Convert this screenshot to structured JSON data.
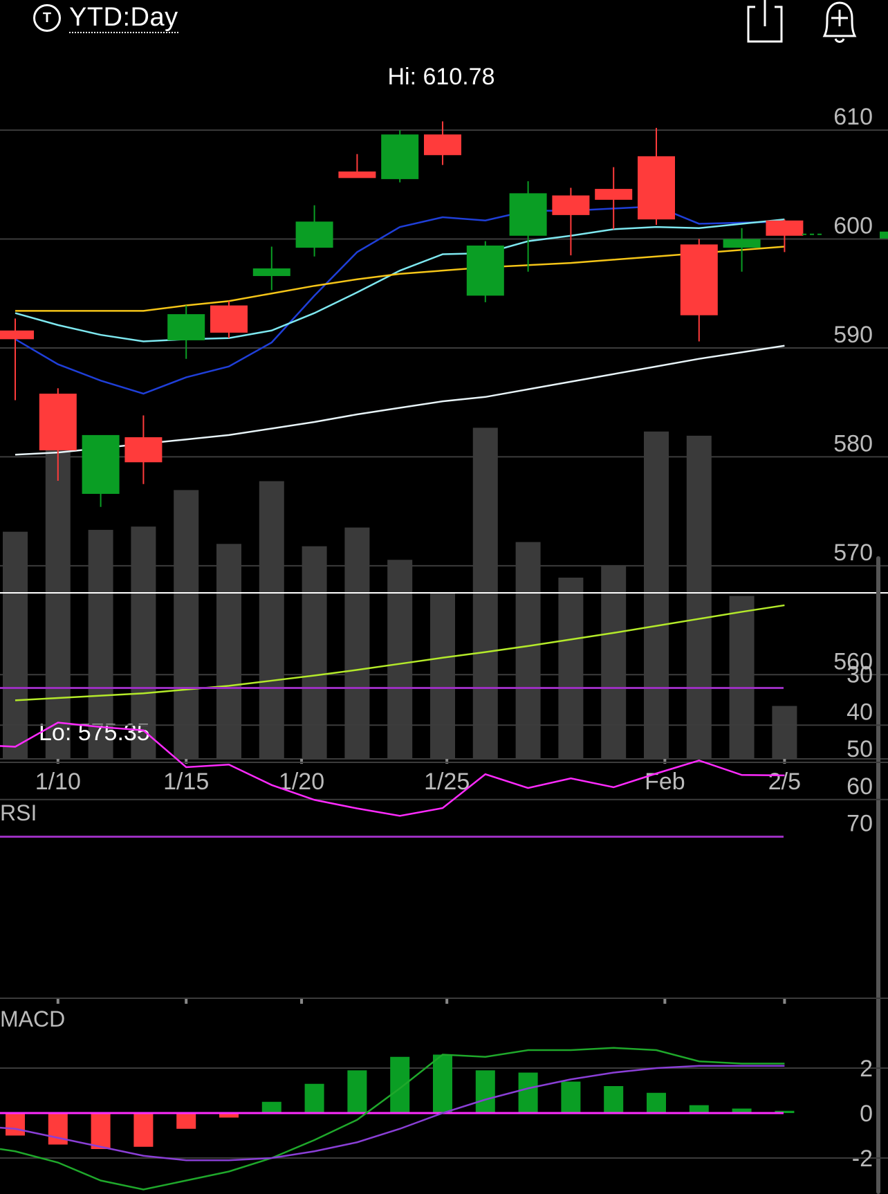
{
  "header": {
    "period_icon": "ticker-icon",
    "period_icon_letter": "T",
    "period_label": "YTD:Day",
    "share_icon": "share-icon",
    "alert_icon": "add-alert-icon"
  },
  "colors": {
    "up": "#0a9e24",
    "down": "#ff3b3b",
    "volume": "#3a3a3a",
    "grid": "#3c3c3c",
    "ma_blue": "#1f3fd8",
    "ma_cyan": "#7ee8f0",
    "ma_yellow": "#f5c518",
    "ma_white": "#e8f4f8",
    "volume_ma": "#b4ea2a",
    "rsi_line": "#ff2bff",
    "rsi_bounds": "#9b2fc0",
    "macd_line": "#1fa82b",
    "signal_line": "#8a3fd6",
    "macd_zero": "#ff2bff"
  },
  "chart_data": [
    {
      "type": "candlestick",
      "title": "",
      "period": "YTD:Day",
      "x": [
        "1/8",
        "1/10",
        "1/13",
        "1/14",
        "1/15",
        "1/16",
        "1/17",
        "1/21",
        "1/22",
        "1/23",
        "1/24",
        "1/27",
        "1/28",
        "1/29",
        "1/30",
        "1/31",
        "2/3",
        "2/4",
        "2/5"
      ],
      "x_tick_labels": [
        "1/10",
        "1/15",
        "1/20",
        "1/25",
        "Feb",
        "2/5"
      ],
      "y_tick_labels": [
        560,
        570,
        580,
        590,
        600,
        610
      ],
      "ylim": [
        552.3,
        612.1
      ],
      "hi_label": "Hi: 610.78",
      "lo_label": "Lo: 575.35",
      "series": [
        {
          "name": "",
          "ohlc": [
            [
              591.6,
              592.7,
              585.2,
              590.8
            ],
            [
              585.8,
              586.3,
              577.8,
              580.6
            ],
            [
              576.6,
              581.7,
              575.4,
              582.0
            ],
            [
              581.8,
              583.8,
              577.5,
              579.5
            ],
            [
              590.7,
              593.9,
              589.0,
              593.1
            ],
            [
              593.9,
              594.3,
              590.9,
              591.4
            ],
            [
              596.6,
              599.3,
              595.3,
              597.3
            ],
            [
              599.2,
              603.1,
              598.4,
              601.6
            ],
            [
              606.2,
              607.8,
              605.8,
              605.6
            ],
            [
              605.5,
              610.0,
              605.2,
              609.6
            ],
            [
              609.6,
              610.8,
              606.8,
              607.7
            ],
            [
              594.8,
              599.8,
              594.2,
              599.4
            ],
            [
              600.3,
              605.3,
              597.0,
              604.2
            ],
            [
              604.0,
              604.7,
              598.5,
              602.2
            ],
            [
              604.6,
              606.6,
              600.9,
              603.6
            ],
            [
              607.6,
              610.2,
              601.3,
              601.8
            ],
            [
              599.5,
              600.0,
              590.6,
              593.0
            ],
            [
              599.2,
              601.0,
              597.0,
              600.0
            ],
            [
              601.7,
              601.8,
              598.8,
              600.3
            ]
          ]
        },
        {
          "name": "",
          "role": "ma_blue",
          "values": [
            590.8,
            588.5,
            587.0,
            585.8,
            587.3,
            588.3,
            590.5,
            594.8,
            598.8,
            601.1,
            602.0,
            601.7,
            602.6,
            602.6,
            602.8,
            603.0,
            601.4,
            601.5,
            601.6
          ]
        },
        {
          "name": "",
          "role": "ma_cyan",
          "values": [
            593.2,
            592.1,
            591.2,
            590.6,
            590.8,
            590.9,
            591.6,
            593.2,
            595.1,
            597.1,
            598.6,
            598.7,
            599.8,
            600.3,
            600.9,
            601.1,
            601.0,
            601.4,
            601.8
          ]
        },
        {
          "name": "",
          "role": "ma_yellow",
          "values": [
            593.4,
            593.4,
            593.4,
            593.4,
            593.9,
            594.3,
            595.0,
            595.7,
            596.3,
            596.8,
            597.1,
            597.4,
            597.6,
            597.8,
            598.1,
            598.4,
            598.7,
            599.0,
            599.3
          ]
        },
        {
          "name": "",
          "role": "ma_white",
          "values": [
            580.2,
            580.4,
            580.8,
            581.2,
            581.6,
            582.0,
            582.6,
            583.2,
            583.9,
            584.5,
            585.1,
            585.5,
            586.2,
            586.9,
            587.6,
            588.3,
            589.0,
            589.6,
            590.2
          ]
        }
      ]
    },
    {
      "type": "bar",
      "title": "",
      "role": "volume",
      "x": [
        "1/8",
        "1/10",
        "1/13",
        "1/14",
        "1/15",
        "1/16",
        "1/17",
        "1/21",
        "1/22",
        "1/23",
        "1/24",
        "1/27",
        "1/28",
        "1/29",
        "1/30",
        "1/31",
        "2/3",
        "2/4",
        "2/5"
      ],
      "values": [
        48.5,
        73.9,
        48.9,
        49.6,
        57.4,
        45.9,
        59.3,
        45.4,
        49.4,
        42.5,
        35.6,
        70.7,
        46.3,
        38.7,
        41.2,
        69.9,
        69.0,
        34.8,
        11.3
      ],
      "volume_ma": [
        12.5,
        13.0,
        13.5,
        14.0,
        14.8,
        15.6,
        16.7,
        17.8,
        19.0,
        20.3,
        21.6,
        22.8,
        24.1,
        25.5,
        26.9,
        28.4,
        29.9,
        31.4,
        32.8
      ],
      "ylim": [
        0,
        100
      ]
    },
    {
      "type": "line",
      "title": "RSI",
      "y_tick_labels": [
        30,
        40,
        50,
        60,
        70
      ],
      "bounds": [
        70,
        30
      ],
      "ylim": [
        26,
        72.5
      ],
      "values": [
        45.8,
        39.3,
        40.5,
        41.4,
        51.3,
        50.6,
        56.1,
        60.1,
        62.4,
        64.4,
        62.3,
        53.2,
        56.9,
        54.3,
        56.7,
        53.0,
        49.5,
        53.4,
        53.5
      ]
    },
    {
      "type": "bar",
      "title": "MACD",
      "y_tick_labels": [
        -2,
        0,
        2
      ],
      "ylim": [
        -3.5,
        3.3
      ],
      "histogram": [
        -1.0,
        -1.4,
        -1.6,
        -1.5,
        -0.7,
        -0.2,
        0.5,
        1.3,
        1.9,
        2.5,
        2.6,
        1.9,
        1.8,
        1.4,
        1.2,
        0.9,
        0.35,
        0.2,
        0.1
      ],
      "series": [
        {
          "name": "",
          "role": "macd",
          "values": [
            -1.7,
            -2.2,
            -3.0,
            -3.4,
            -3.0,
            -2.6,
            -2.0,
            -1.2,
            -0.3,
            1.1,
            2.6,
            2.5,
            2.8,
            2.8,
            2.9,
            2.8,
            2.3,
            2.2,
            2.2
          ]
        },
        {
          "name": "",
          "role": "signal",
          "values": [
            -0.7,
            -1.1,
            -1.5,
            -1.9,
            -2.1,
            -2.1,
            -2.0,
            -1.7,
            -1.3,
            -0.7,
            0.0,
            0.6,
            1.1,
            1.5,
            1.8,
            2.0,
            2.1,
            2.1,
            2.1
          ]
        }
      ]
    }
  ]
}
